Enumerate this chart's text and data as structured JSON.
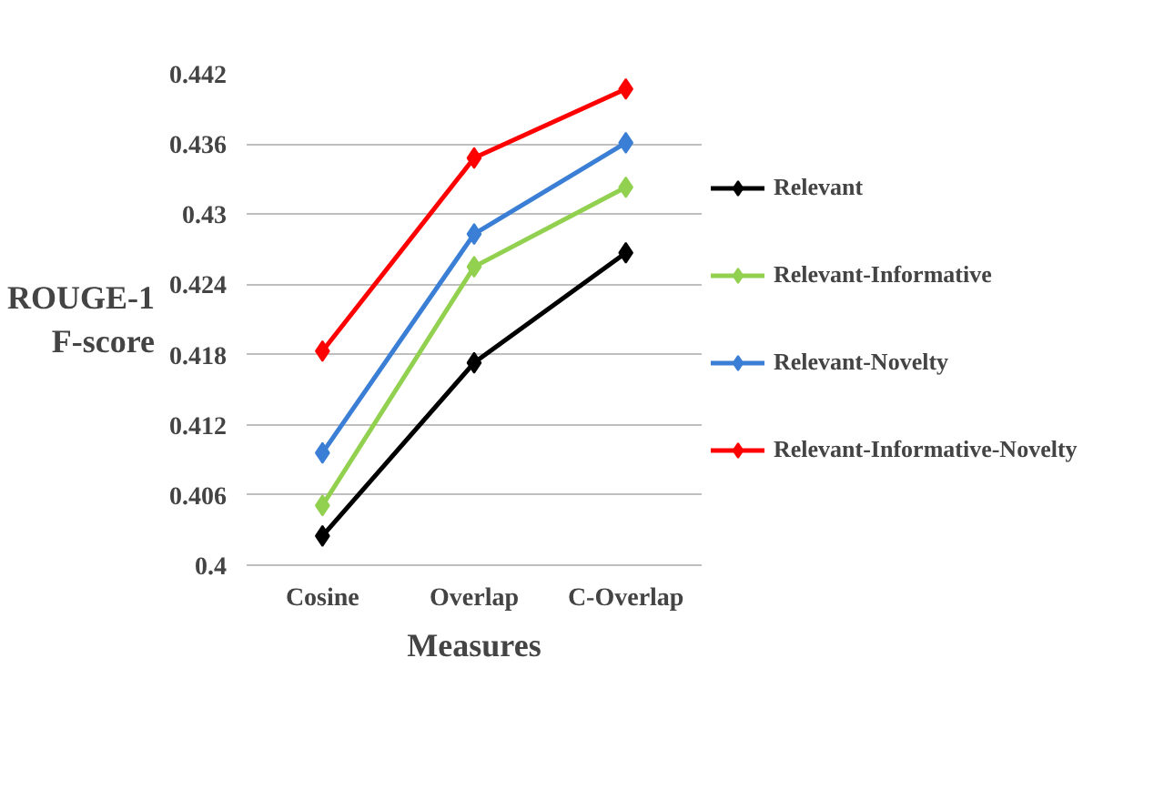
{
  "chart_data": {
    "type": "line",
    "xlabel": "Measures",
    "ylabel": "ROUGE-1 F-score",
    "categories": [
      "Cosine",
      "Overlap",
      "C-Overlap"
    ],
    "series": [
      {
        "name": "Relevant",
        "color": "#000000",
        "values": [
          0.4025,
          0.4173,
          0.4267
        ]
      },
      {
        "name": "Relevant-Informative",
        "color": "#92d050",
        "values": [
          0.4051,
          0.4255,
          0.4323
        ]
      },
      {
        "name": "Relevant-Novelty",
        "color": "#3a7fd5",
        "values": [
          0.4096,
          0.4283,
          0.4361
        ]
      },
      {
        "name": "Relevant-Informative-Novelty",
        "color": "#ff0000",
        "values": [
          0.4183,
          0.4348,
          0.4407
        ]
      }
    ],
    "ylim": [
      0.4,
      0.442
    ],
    "yticks": [
      0.4,
      0.406,
      0.412,
      0.418,
      0.424,
      0.43,
      0.436,
      0.442
    ],
    "grid": "y",
    "legend": "right",
    "marker": "diamond",
    "line_style": "solid"
  }
}
